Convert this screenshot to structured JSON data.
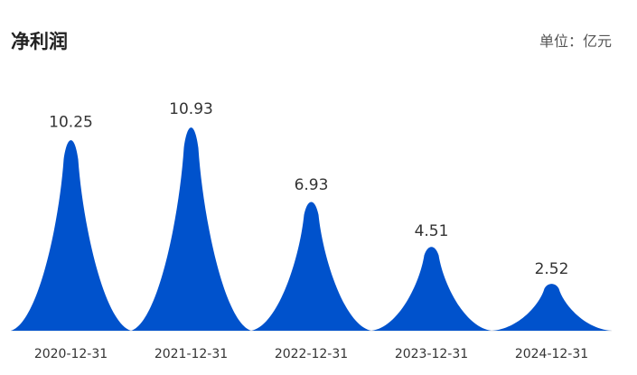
{
  "header": {
    "title": "净利润",
    "unit_label": "单位：亿元"
  },
  "chart_data": {
    "type": "area",
    "title": "净利润",
    "unit": "亿元",
    "categories": [
      "2020-12-31",
      "2021-12-31",
      "2022-12-31",
      "2023-12-31",
      "2024-12-31"
    ],
    "values": [
      10.25,
      10.93,
      6.93,
      4.51,
      2.52
    ],
    "value_labels": [
      "10.25",
      "10.93",
      "6.93",
      "4.51",
      "2.52"
    ],
    "ylim": [
      0,
      11.5
    ],
    "grid": false,
    "legend": "none",
    "color": "#0052CC"
  }
}
